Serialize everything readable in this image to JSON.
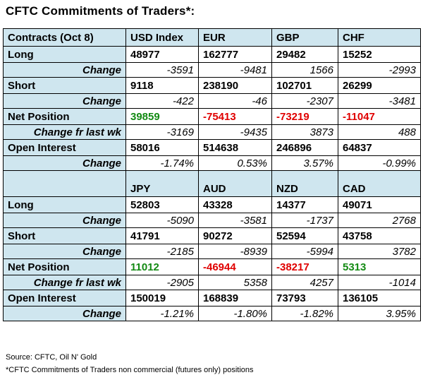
{
  "title": "CFTC Commitments of Traders*:",
  "row_labels": {
    "contracts": "Contracts (Oct 8)",
    "long": "Long",
    "change": "Change",
    "short": "Short",
    "net_position": "Net Position",
    "change_fr_last_wk": "Change fr last wk",
    "open_interest": "Open Interest"
  },
  "block1": {
    "headers": [
      "USD Index",
      "EUR",
      "GBP",
      "CHF"
    ],
    "long": [
      "48977",
      "162777",
      "29482",
      "15252"
    ],
    "long_change": [
      "-3591",
      "-9481",
      "1566",
      "-2993"
    ],
    "short": [
      "9118",
      "238190",
      "102701",
      "26299"
    ],
    "short_change": [
      "-422",
      "-46",
      "-2307",
      "-3481"
    ],
    "net_position": [
      "39859",
      "-75413",
      "-73219",
      "-11047"
    ],
    "net_change": [
      "-3169",
      "-9435",
      "3873",
      "488"
    ],
    "open_interest": [
      "58016",
      "514638",
      "246896",
      "64837"
    ],
    "oi_change": [
      "-1.74%",
      "0.53%",
      "3.57%",
      "-0.99%"
    ]
  },
  "block2": {
    "headers": [
      "JPY",
      "AUD",
      "NZD",
      "CAD"
    ],
    "long": [
      "52803",
      "43328",
      "14377",
      "49071"
    ],
    "long_change": [
      "-5090",
      "-3581",
      "-1737",
      "2768"
    ],
    "short": [
      "41791",
      "90272",
      "52594",
      "43758"
    ],
    "short_change": [
      "-2185",
      "-8939",
      "-5994",
      "3782"
    ],
    "net_position": [
      "11012",
      "-46944",
      "-38217",
      "5313"
    ],
    "net_change": [
      "-2905",
      "5358",
      "4257",
      "-1014"
    ],
    "open_interest": [
      "150019",
      "168839",
      "73793",
      "136105"
    ],
    "oi_change": [
      "-1.21%",
      "-1.80%",
      "-1.82%",
      "3.95%"
    ]
  },
  "colors": {
    "header_bg": "#cfe6ef",
    "positive": "#138a13",
    "negative": "#e00000"
  },
  "footer": {
    "source": "Source: CFTC, Oil N' Gold",
    "note": "*CFTC Commitments of Traders non commercial (futures only) positions"
  }
}
